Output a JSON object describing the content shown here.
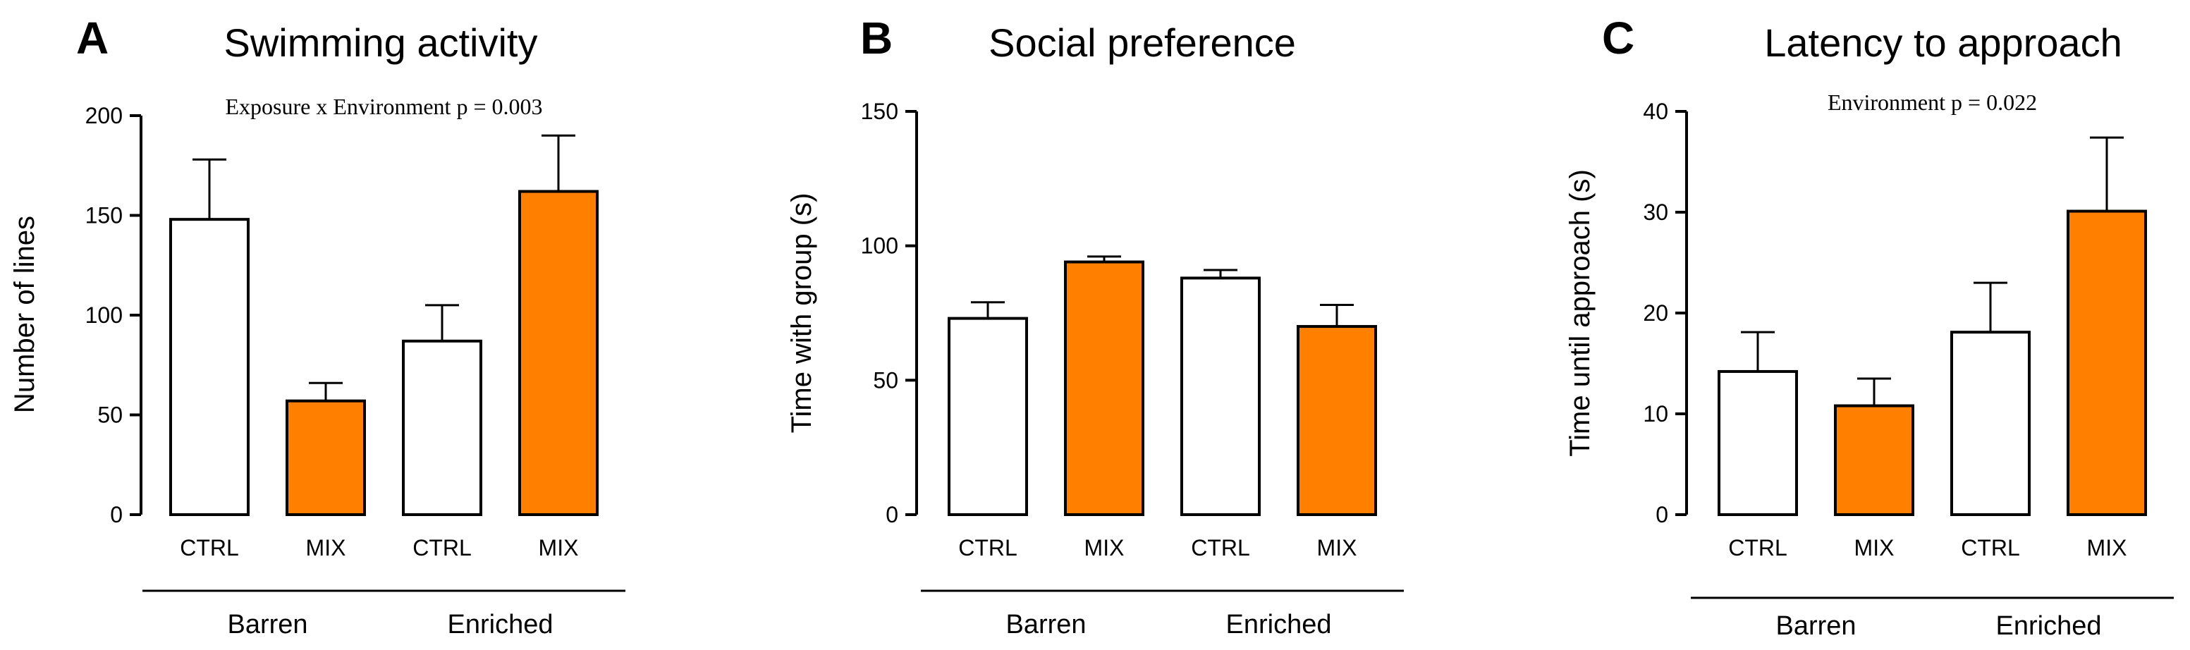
{
  "chart_data": [
    {
      "panel": "A",
      "type": "bar",
      "title": "Swimming activity",
      "annotation": "Exposure x Environment p = 0.003",
      "ylabel": "Number of lines",
      "xlabel": "",
      "ylim": [
        0,
        200
      ],
      "yticks": [
        0,
        50,
        100,
        150,
        200
      ],
      "categories": [
        "CTRL",
        "MIX",
        "CTRL",
        "MIX"
      ],
      "groups": [
        {
          "label": "Barren",
          "categories": [
            0,
            1
          ]
        },
        {
          "label": "Enriched",
          "categories": [
            2,
            3
          ]
        }
      ],
      "values": [
        148,
        57,
        87,
        162
      ],
      "errors": [
        30,
        9,
        18,
        28
      ],
      "colors": [
        "#ffffff",
        "#ff8000",
        "#ffffff",
        "#ff8000"
      ]
    },
    {
      "panel": "B",
      "type": "bar",
      "title": "Social preference",
      "annotation": "",
      "ylabel": "Time with group (s)",
      "xlabel": "",
      "ylim": [
        0,
        150
      ],
      "yticks": [
        0,
        50,
        100,
        150
      ],
      "categories": [
        "CTRL",
        "MIX",
        "CTRL",
        "MIX"
      ],
      "groups": [
        {
          "label": "Barren",
          "categories": [
            0,
            1
          ]
        },
        {
          "label": "Enriched",
          "categories": [
            2,
            3
          ]
        }
      ],
      "values": [
        73,
        94,
        88,
        70
      ],
      "errors": [
        6,
        2,
        3,
        8
      ],
      "colors": [
        "#ffffff",
        "#ff8000",
        "#ffffff",
        "#ff8000"
      ]
    },
    {
      "panel": "C",
      "type": "bar",
      "title": "Latency to approach",
      "annotation": "Environment p = 0.022",
      "ylabel": "Time until approach (s)",
      "xlabel": "",
      "ylim": [
        0,
        40
      ],
      "yticks": [
        0,
        10,
        20,
        30,
        40
      ],
      "categories": [
        "CTRL",
        "MIX",
        "CTRL",
        "MIX"
      ],
      "groups": [
        {
          "label": "Barren",
          "categories": [
            0,
            1
          ]
        },
        {
          "label": "Enriched",
          "categories": [
            2,
            3
          ]
        }
      ],
      "values": [
        14.2,
        10.8,
        18.1,
        30.1
      ],
      "errors": [
        3.9,
        2.7,
        4.9,
        7.3
      ],
      "colors": [
        "#ffffff",
        "#ff8000",
        "#ffffff",
        "#ff8000"
      ]
    }
  ]
}
